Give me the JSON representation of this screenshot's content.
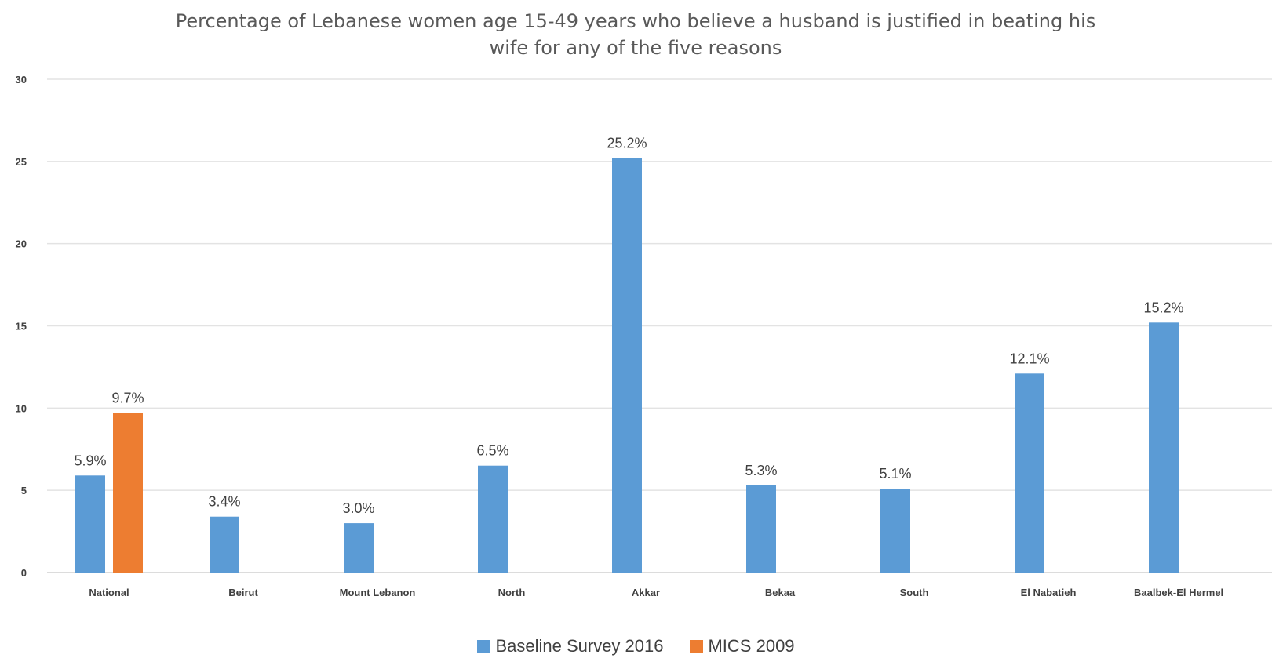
{
  "chart_data": {
    "type": "bar",
    "title_lines": [
      "Percentage of Lebanese women age 15-49 years who believe a husband is justified in beating his",
      "wife for any of the five reasons"
    ],
    "xlabel": "",
    "ylabel": "",
    "ylim": [
      0,
      30
    ],
    "yticks": [
      0,
      5,
      10,
      15,
      20,
      25,
      30
    ],
    "grid": true,
    "legend_position": "bottom",
    "categories": [
      "National",
      "Beirut",
      "Mount Lebanon",
      "North",
      "Akkar",
      "Bekaa",
      "South",
      "El Nabatieh",
      "Baalbek-El Hermel"
    ],
    "series": [
      {
        "name": "Baseline Survey 2016",
        "color": "#5B9BD5",
        "values": [
          5.9,
          3.4,
          3.0,
          6.5,
          25.2,
          5.3,
          5.1,
          12.1,
          15.2
        ],
        "labels": [
          "5.9%",
          "3.4%",
          "3.0%",
          "6.5%",
          "25.2%",
          "5.3%",
          "5.1%",
          "12.1%",
          "15.2%"
        ]
      },
      {
        "name": "MICS 2009",
        "color": "#ED7D31",
        "values": [
          9.7,
          null,
          null,
          null,
          null,
          null,
          null,
          null,
          null
        ],
        "labels": [
          "9.7%",
          null,
          null,
          null,
          null,
          null,
          null,
          null,
          null
        ]
      }
    ]
  }
}
